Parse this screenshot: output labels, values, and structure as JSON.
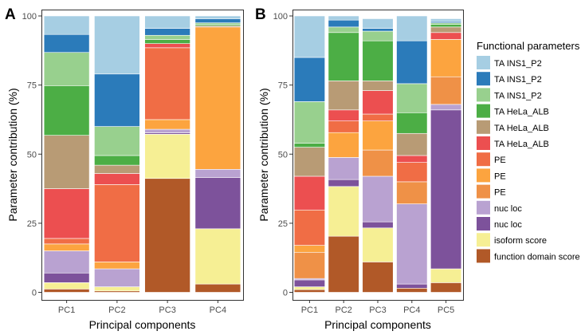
{
  "chart_data": [
    {
      "type": "bar",
      "stacked": true,
      "panel_label": "A",
      "xlabel": "Principal components",
      "ylabel": "Parameter contribution (%)",
      "ylim": [
        0,
        100
      ],
      "yticks": [
        0,
        25,
        50,
        75,
        100
      ],
      "categories": [
        "PC1",
        "PC2",
        "PC3",
        "PC4"
      ],
      "series": [
        {
          "name": "function domain score",
          "values": [
            1.2,
            0.5,
            41.2,
            3.0
          ]
        },
        {
          "name": "isoform score",
          "values": [
            2.3,
            1.5,
            16.0,
            20.0
          ]
        },
        {
          "name": "nuc loc",
          "values": [
            3.5,
            0.0,
            0.5,
            18.5
          ]
        },
        {
          "name": "nuc loc",
          "values": [
            8.0,
            6.5,
            1.3,
            3.0
          ]
        },
        {
          "name": "PE",
          "values": [
            0.0,
            0.0,
            0.0,
            0.0
          ]
        },
        {
          "name": "PE",
          "values": [
            2.5,
            2.5,
            3.5,
            51.5
          ]
        },
        {
          "name": "PE",
          "values": [
            2.0,
            28.0,
            26.0,
            0.0
          ]
        },
        {
          "name": "TA HeLa_ALB",
          "values": [
            18.0,
            4.0,
            1.5,
            0.0
          ]
        },
        {
          "name": "TA HeLa_ALB",
          "values": [
            19.3,
            3.0,
            0.0,
            0.5
          ]
        },
        {
          "name": "TA HeLa_ALB",
          "values": [
            18.0,
            3.5,
            1.5,
            0.5
          ]
        },
        {
          "name": "TA INS1_P2",
          "values": [
            12.0,
            10.5,
            1.5,
            0.5
          ]
        },
        {
          "name": "TA INS1_P2",
          "values": [
            6.5,
            19.0,
            2.5,
            1.5
          ]
        },
        {
          "name": "TA INS1_P2",
          "values": [
            6.7,
            21.0,
            4.5,
            1.0
          ]
        }
      ]
    },
    {
      "type": "bar",
      "stacked": true,
      "panel_label": "B",
      "xlabel": "Principal components",
      "ylabel": "Parameter contribution (%)",
      "ylim": [
        0,
        100
      ],
      "yticks": [
        0,
        25,
        50,
        75,
        100
      ],
      "categories": [
        "PC1",
        "PC2",
        "PC3",
        "PC4",
        "PC5"
      ],
      "series": [
        {
          "name": "function domain score",
          "values": [
            1.0,
            20.3,
            11.0,
            1.5,
            3.5
          ]
        },
        {
          "name": "isoform score",
          "values": [
            1.0,
            18.0,
            12.3,
            0.0,
            5.0
          ]
        },
        {
          "name": "nuc loc",
          "values": [
            2.5,
            2.5,
            2.2,
            1.5,
            57.5
          ]
        },
        {
          "name": "nuc loc",
          "values": [
            0.5,
            8.0,
            16.5,
            29.0,
            2.0
          ]
        },
        {
          "name": "PE",
          "values": [
            9.5,
            0.0,
            9.5,
            8.0,
            10.0
          ]
        },
        {
          "name": "PE",
          "values": [
            2.5,
            9.0,
            10.5,
            0.0,
            13.5
          ]
        },
        {
          "name": "PE",
          "values": [
            12.8,
            4.2,
            2.5,
            7.0,
            0.0
          ]
        },
        {
          "name": "TA HeLa_ALB",
          "values": [
            12.2,
            4.0,
            8.5,
            2.5,
            2.5
          ]
        },
        {
          "name": "TA HeLa_ALB",
          "values": [
            10.5,
            10.5,
            3.5,
            8.0,
            2.0
          ]
        },
        {
          "name": "TA HeLa_ALB",
          "values": [
            1.5,
            17.5,
            14.5,
            7.5,
            1.0
          ]
        },
        {
          "name": "TA INS1_P2",
          "values": [
            15.0,
            2.0,
            3.5,
            10.5,
            0.5
          ]
        },
        {
          "name": "TA INS1_P2",
          "values": [
            16.0,
            2.5,
            1.0,
            15.5,
            0.5
          ]
        },
        {
          "name": "TA INS1_P2",
          "values": [
            15.0,
            1.5,
            3.5,
            9.0,
            1.0
          ]
        }
      ]
    }
  ],
  "legend": {
    "title": "Functional parameters",
    "items": [
      {
        "label": "TA INS1_P2",
        "color": "#a6cee3"
      },
      {
        "label": "TA INS1_P2",
        "color": "#2b7bba"
      },
      {
        "label": "TA INS1_P2",
        "color": "#98d08e"
      },
      {
        "label": "TA HeLa_ALB",
        "color": "#4cae45"
      },
      {
        "label": "TA HeLa_ALB",
        "color": "#b89b75"
      },
      {
        "label": "TA HeLa_ALB",
        "color": "#ec4f50"
      },
      {
        "label": "PE",
        "color": "#f06d45"
      },
      {
        "label": "PE",
        "color": "#fca43f"
      },
      {
        "label": "PE",
        "color": "#ef9147"
      },
      {
        "label": "nuc loc",
        "color": "#b9a2d1"
      },
      {
        "label": "nuc loc",
        "color": "#7d529b"
      },
      {
        "label": "isoform score",
        "color": "#f6ef94"
      },
      {
        "label": "function domain score",
        "color": "#b15928"
      }
    ]
  },
  "stack_colors": [
    "#b15928",
    "#f6ef94",
    "#7d529b",
    "#b9a2d1",
    "#ef9147",
    "#fca43f",
    "#f06d45",
    "#ec4f50",
    "#b89b75",
    "#4cae45",
    "#98d08e",
    "#2b7bba",
    "#a6cee3"
  ]
}
